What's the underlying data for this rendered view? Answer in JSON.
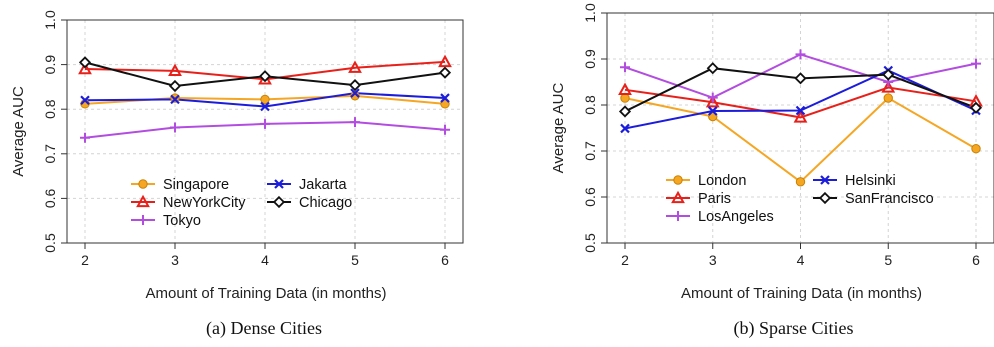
{
  "chart_data": [
    {
      "type": "line",
      "xlabel": "Amount of Training Data (in months)",
      "ylabel": "Average AUC",
      "caption": "(a) Dense Cities",
      "x": [
        2,
        3,
        4,
        5,
        6
      ],
      "xlim": [
        2,
        6
      ],
      "ylim": [
        0.5,
        1.0
      ],
      "yticks": [
        "0.5",
        "0.6",
        "0.7",
        "0.8",
        "0.9",
        "1.0"
      ],
      "xticks": [
        "2",
        "3",
        "4",
        "5",
        "6"
      ],
      "grid": true,
      "legend_columns": 2,
      "series": [
        {
          "name": "Singapore",
          "values": [
            0.812,
            0.825,
            0.822,
            0.83,
            0.812
          ],
          "color": "#f5a623",
          "marker": "circle"
        },
        {
          "name": "NewYorkCity",
          "values": [
            0.89,
            0.886,
            0.867,
            0.893,
            0.906
          ],
          "color": "#e8201a",
          "marker": "triangle"
        },
        {
          "name": "Tokyo",
          "values": [
            0.736,
            0.759,
            0.767,
            0.771,
            0.754
          ],
          "color": "#b24de0",
          "marker": "plus"
        },
        {
          "name": "Jakarta",
          "values": [
            0.82,
            0.822,
            0.806,
            0.836,
            0.825
          ],
          "color": "#1c1cdb",
          "marker": "x"
        },
        {
          "name": "Chicago",
          "values": [
            0.905,
            0.852,
            0.874,
            0.854,
            0.882
          ],
          "color": "#111111",
          "marker": "diamond"
        }
      ]
    },
    {
      "type": "line",
      "xlabel": "Amount of Training Data (in months)",
      "ylabel": "Average AUC",
      "caption": "(b) Sparse Cities",
      "x": [
        2,
        3,
        4,
        5,
        6
      ],
      "xlim": [
        2,
        6
      ],
      "ylim": [
        0.5,
        1.0
      ],
      "yticks": [
        "0.5",
        "0.6",
        "0.7",
        "0.8",
        "0.9",
        "1.0"
      ],
      "xticks": [
        "2",
        "3",
        "4",
        "5",
        "6"
      ],
      "grid": true,
      "legend_columns": 2,
      "series": [
        {
          "name": "London",
          "values": [
            0.815,
            0.775,
            0.633,
            0.815,
            0.705
          ],
          "color": "#f5a623",
          "marker": "circle"
        },
        {
          "name": "Paris",
          "values": [
            0.833,
            0.806,
            0.773,
            0.838,
            0.808
          ],
          "color": "#e8201a",
          "marker": "triangle"
        },
        {
          "name": "LosAngeles",
          "values": [
            0.882,
            0.816,
            0.91,
            0.85,
            0.89
          ],
          "color": "#b24de0",
          "marker": "plus"
        },
        {
          "name": "Helsinki",
          "values": [
            0.749,
            0.787,
            0.788,
            0.875,
            0.788
          ],
          "color": "#1c1cdb",
          "marker": "x"
        },
        {
          "name": "SanFrancisco",
          "values": [
            0.786,
            0.88,
            0.858,
            0.866,
            0.794
          ],
          "color": "#111111",
          "marker": "diamond"
        }
      ]
    }
  ]
}
